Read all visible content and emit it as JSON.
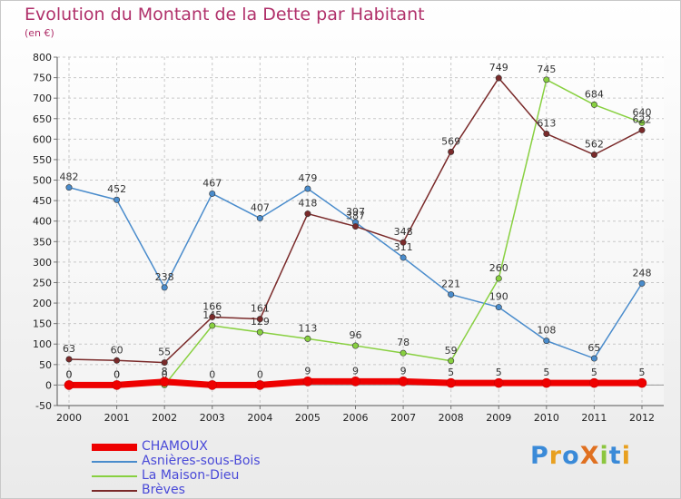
{
  "header": {
    "title": "Evolution du Montant de la Dette par Habitant",
    "subtitle": "(en €)"
  },
  "logo": {
    "text": "ProXiti",
    "letters": [
      {
        "ch": "P",
        "color": "#3a8ad8"
      },
      {
        "ch": "r",
        "color": "#e8a020"
      },
      {
        "ch": "o",
        "color": "#3a8ad8"
      },
      {
        "ch": "X",
        "color": "#e07020"
      },
      {
        "ch": "i",
        "color": "#8cc63f"
      },
      {
        "ch": "t",
        "color": "#3a8ad8"
      },
      {
        "ch": "i",
        "color": "#e8a020"
      }
    ]
  },
  "chart_data": {
    "type": "line",
    "x": [
      "2000",
      "2001",
      "2002",
      "2003",
      "2004",
      "2005",
      "2006",
      "2007",
      "2008",
      "2009",
      "2010",
      "2011",
      "2012"
    ],
    "ylim": [
      -50,
      800
    ],
    "yticks": [
      -50,
      0,
      50,
      100,
      150,
      200,
      250,
      300,
      350,
      400,
      450,
      500,
      550,
      600,
      650,
      700,
      750,
      800
    ],
    "grid": true,
    "legend_position": "bottom-left",
    "series": [
      {
        "name": "CHAMOUX",
        "color": "#ee0000",
        "values": [
          0,
          0,
          8,
          0,
          0,
          9,
          9,
          9,
          5,
          5,
          5,
          5,
          5
        ],
        "labels": [
          "0",
          "0",
          "8",
          "0",
          "0",
          "9",
          "9",
          "9",
          "5",
          "5",
          "5",
          "5",
          "5"
        ],
        "thick": true
      },
      {
        "name": "Asnières-sous-Bois",
        "color": "#4a8ccc",
        "values": [
          482,
          452,
          238,
          467,
          407,
          479,
          397,
          311,
          221,
          190,
          108,
          65,
          248
        ],
        "labels": [
          "482",
          "452",
          "238",
          "467",
          "407",
          "479",
          "397",
          "311",
          "221",
          "190",
          "108",
          "65",
          "248"
        ]
      },
      {
        "name": "La Maison-Dieu",
        "color": "#88d040",
        "values": [
          0,
          0,
          0,
          145,
          129,
          113,
          96,
          78,
          59,
          260,
          745,
          684,
          640
        ],
        "labels": [
          "0",
          "0",
          "0",
          "145",
          "129",
          "113",
          "96",
          "78",
          "59",
          "260",
          "745",
          "684",
          "640"
        ]
      },
      {
        "name": "Brèves",
        "color": "#7a2a2a",
        "values": [
          63,
          60,
          55,
          166,
          161,
          418,
          387,
          348,
          569,
          749,
          613,
          562,
          622
        ],
        "labels": [
          "63",
          "60",
          "55",
          "166",
          "161",
          "418",
          "387",
          "348",
          "569",
          "749",
          "613",
          "562",
          "622"
        ]
      }
    ]
  }
}
